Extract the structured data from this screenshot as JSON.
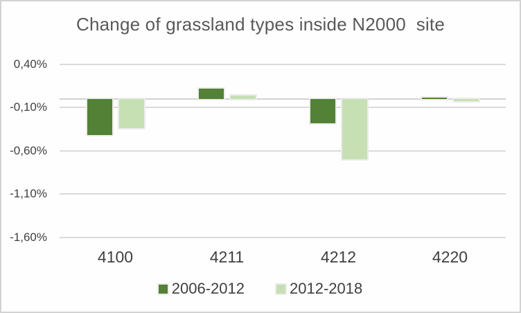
{
  "chart_data": {
    "type": "bar",
    "title": "Change of grassland types inside N2000  site",
    "xlabel": "",
    "ylabel": "",
    "categories": [
      "4100",
      "4211",
      "4212",
      "4220"
    ],
    "series": [
      {
        "name": "2006-2012",
        "color": "#538135",
        "values": [
          -0.42,
          0.12,
          -0.28,
          0.01
        ]
      },
      {
        "name": "2012-2018",
        "color": "#c6e0b4",
        "values": [
          -0.34,
          0.04,
          -0.7,
          -0.03
        ]
      }
    ],
    "yticks": [
      {
        "label": "0,40%",
        "value": 0.4
      },
      {
        "label": "-0,10%",
        "value": -0.1
      },
      {
        "label": "-0,60%",
        "value": -0.6
      },
      {
        "label": "-1,10%",
        "value": -1.1
      },
      {
        "label": "-1,60%",
        "value": -1.6
      }
    ],
    "ylim": [
      -1.72,
      0.56
    ],
    "value_format": "percent, comma decimal separator",
    "grid": true,
    "legend_position": "bottom",
    "colors": {
      "title_text": "#595959",
      "axis_text": "#404040",
      "gridline": "#dadada",
      "axis_line": "#d2d2d2",
      "chart_border": "#d2d2d2",
      "bar_outline": "#ececec",
      "series_dark_green": "#538135",
      "series_light_green": "#c6e0b4"
    }
  }
}
